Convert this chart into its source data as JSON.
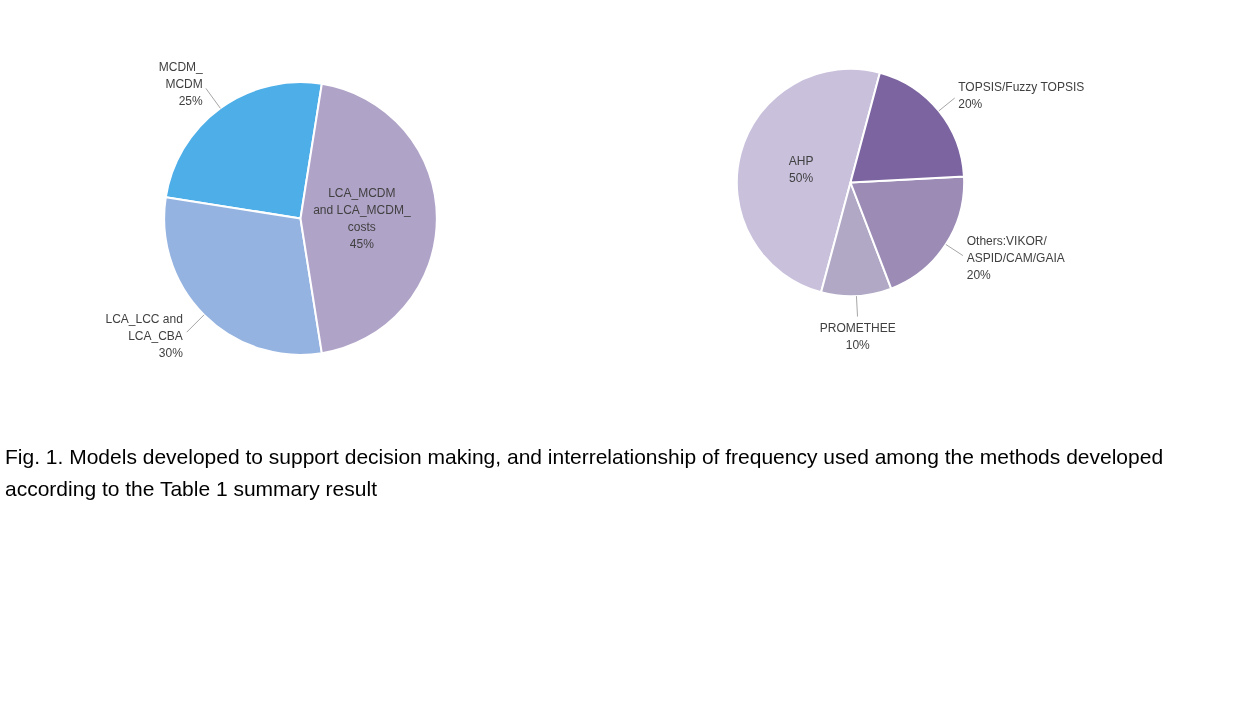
{
  "chart_data": [
    {
      "type": "pie",
      "categories": [
        "MCDM_\nMCDM",
        "LCA_LCC and\nLCA_CBA",
        "LCA_MCDM\nand LCA_MCDM_\ncosts"
      ],
      "values": [
        25,
        30,
        45
      ],
      "value_labels": [
        "25%",
        "30%",
        "45%"
      ],
      "colors": [
        "#4daee8",
        "#95b3e0",
        "#b0a3c8"
      ],
      "annotations": [
        "Fig. 1. Models developed to support decision making, and interrelationship of frequency used among the methods developed according to the Table 1 summary result"
      ]
    },
    {
      "type": "pie",
      "categories": [
        "AHP",
        "PROMETHEE",
        "Others:VIKOR/\nASPID/CAM/GAIA",
        "TOPSIS/Fuzzy TOPSIS"
      ],
      "values": [
        50,
        10,
        20,
        20
      ],
      "value_labels": [
        "50%",
        "10%",
        "20%",
        "20%"
      ],
      "colors": [
        "#c9c0dc",
        "#b1a8c6",
        "#9b8bb5",
        "#7b64a0"
      ]
    }
  ]
}
